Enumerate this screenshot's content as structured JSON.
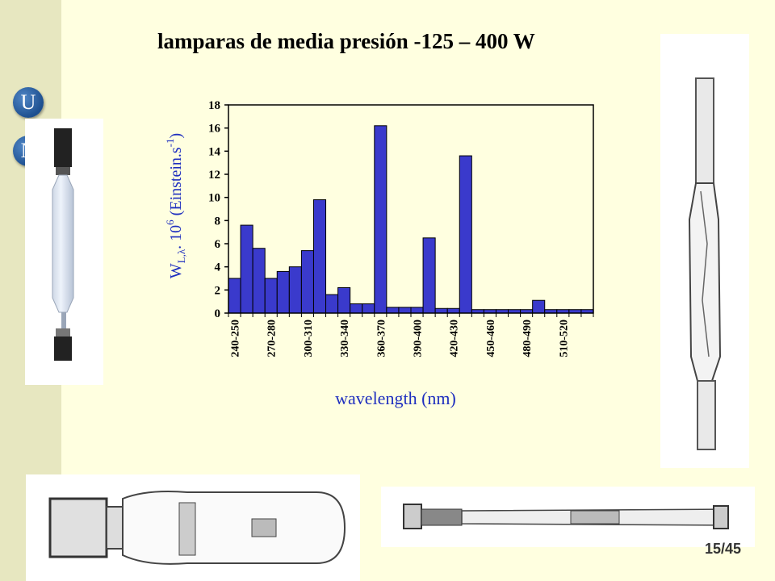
{
  "slide": {
    "title": "lamparas de media presión -125 – 400 W",
    "logo_letter_1": "U",
    "logo_letter_2": "N",
    "page_number": "15/45"
  },
  "chart_data": {
    "type": "bar",
    "title": "",
    "xlabel": "wavelength (nm)",
    "ylabel": "W",
    "ylabel_sub": "L,λ",
    "ylabel_rest": ". 10",
    "ylabel_sup": "6",
    "ylabel_unit": " (Einstein.s",
    "ylabel_unit_sup": "-1",
    "ylabel_close": ")",
    "ylim": [
      0,
      18
    ],
    "yticks": [
      "0",
      "2",
      "4",
      "6",
      "8",
      "10",
      "12",
      "14",
      "16",
      "18"
    ],
    "tick_labels": [
      "240-250",
      "270-280",
      "300-310",
      "330-340",
      "360-370",
      "390-400",
      "420-430",
      "450-460",
      "480-490",
      "510-520"
    ],
    "values": [
      3.0,
      7.6,
      5.6,
      3.0,
      3.6,
      4.0,
      5.4,
      9.8,
      1.6,
      2.2,
      0.8,
      0.8,
      16.2,
      0.5,
      0.5,
      0.5,
      6.5,
      0.4,
      0.4,
      13.6,
      0.3,
      0.3,
      0.3,
      0.3,
      0.3,
      1.1,
      0.3,
      0.3,
      0.3,
      0.3
    ],
    "bar_color": "#3a3acc",
    "grid": false
  }
}
